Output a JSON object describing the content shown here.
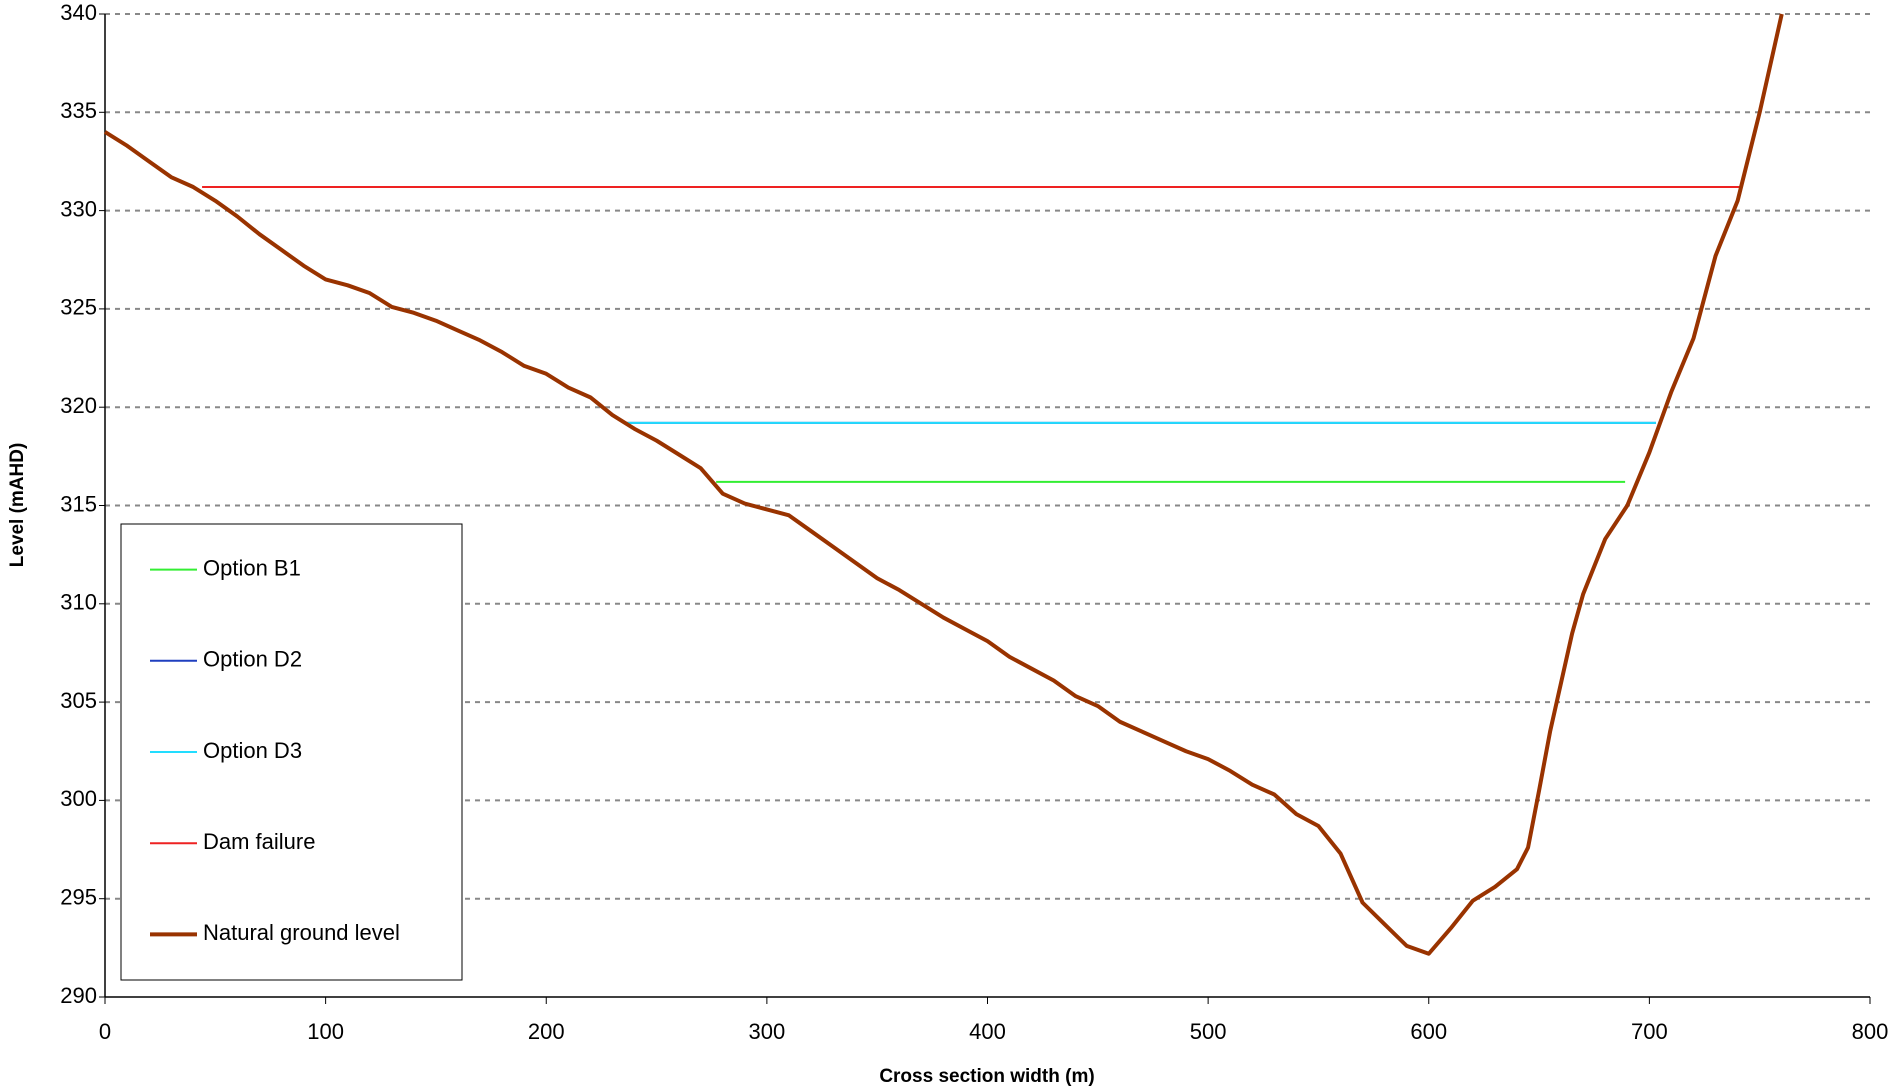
{
  "chart_data": {
    "type": "line",
    "x_label": "Cross section width (m)",
    "y_label": "Level (mAHD)",
    "xlim": [
      0,
      800
    ],
    "xticks": [
      0,
      100,
      200,
      300,
      400,
      500,
      600,
      700,
      800
    ],
    "ylim": [
      290,
      340
    ],
    "yticks": [
      290,
      295,
      300,
      305,
      310,
      315,
      320,
      325,
      330,
      335,
      340
    ],
    "grid": true,
    "legend": "lower left",
    "series": [
      {
        "name": "Option B1",
        "color": "#33ee33",
        "width": 2,
        "x": [
          277,
          689
        ],
        "values": [
          316.2,
          316.2
        ]
      },
      {
        "name": "Option D2",
        "color": "#1f3fbf",
        "width": 2,
        "x": [
          236,
          703
        ],
        "values": [
          319.2,
          319.2
        ]
      },
      {
        "name": "Option D3",
        "color": "#22ddff",
        "width": 2,
        "x": [
          236,
          703
        ],
        "values": [
          319.2,
          319.2
        ]
      },
      {
        "name": "Dam failure",
        "color": "#ee2222",
        "width": 2,
        "x": [
          44,
          741
        ],
        "values": [
          331.2,
          331.2
        ]
      },
      {
        "name": "Natural ground level",
        "color": "#993300",
        "width": 4,
        "x": [
          0,
          10,
          20,
          30,
          40,
          50,
          60,
          70,
          80,
          90,
          100,
          110,
          120,
          130,
          140,
          150,
          160,
          170,
          180,
          190,
          200,
          210,
          220,
          230,
          240,
          250,
          260,
          270,
          280,
          290,
          300,
          310,
          320,
          330,
          340,
          350,
          360,
          370,
          380,
          390,
          400,
          410,
          420,
          430,
          440,
          450,
          460,
          470,
          480,
          490,
          500,
          510,
          520,
          530,
          540,
          550,
          560,
          570,
          580,
          590,
          600,
          610,
          620,
          630,
          640,
          645,
          650,
          655,
          660,
          665,
          670,
          680,
          690,
          700,
          710,
          720,
          730,
          740,
          750,
          760
        ],
        "values": [
          334,
          333.3,
          332.5,
          331.7,
          331.2,
          330.5,
          329.7,
          328.8,
          328,
          327.2,
          326.5,
          326.2,
          325.8,
          325.1,
          324.8,
          324.4,
          323.9,
          323.4,
          322.8,
          322.1,
          321.7,
          321,
          320.5,
          319.6,
          318.9,
          318.3,
          317.6,
          316.9,
          315.6,
          315.1,
          314.8,
          314.5,
          313.7,
          312.9,
          312.1,
          311.3,
          310.7,
          310,
          309.3,
          308.7,
          308.1,
          307.3,
          306.7,
          306.1,
          305.3,
          304.8,
          304,
          303.5,
          303,
          302.5,
          302.1,
          301.5,
          300.8,
          300.3,
          299.3,
          298.7,
          297.3,
          294.8,
          293.7,
          292.6,
          292.2,
          293.5,
          294.9,
          295.6,
          296.5,
          297.6,
          300.5,
          303.5,
          306,
          308.5,
          310.5,
          313.3,
          315,
          317.7,
          320.8,
          323.5,
          327.7,
          330.5,
          335,
          340
        ]
      }
    ]
  }
}
